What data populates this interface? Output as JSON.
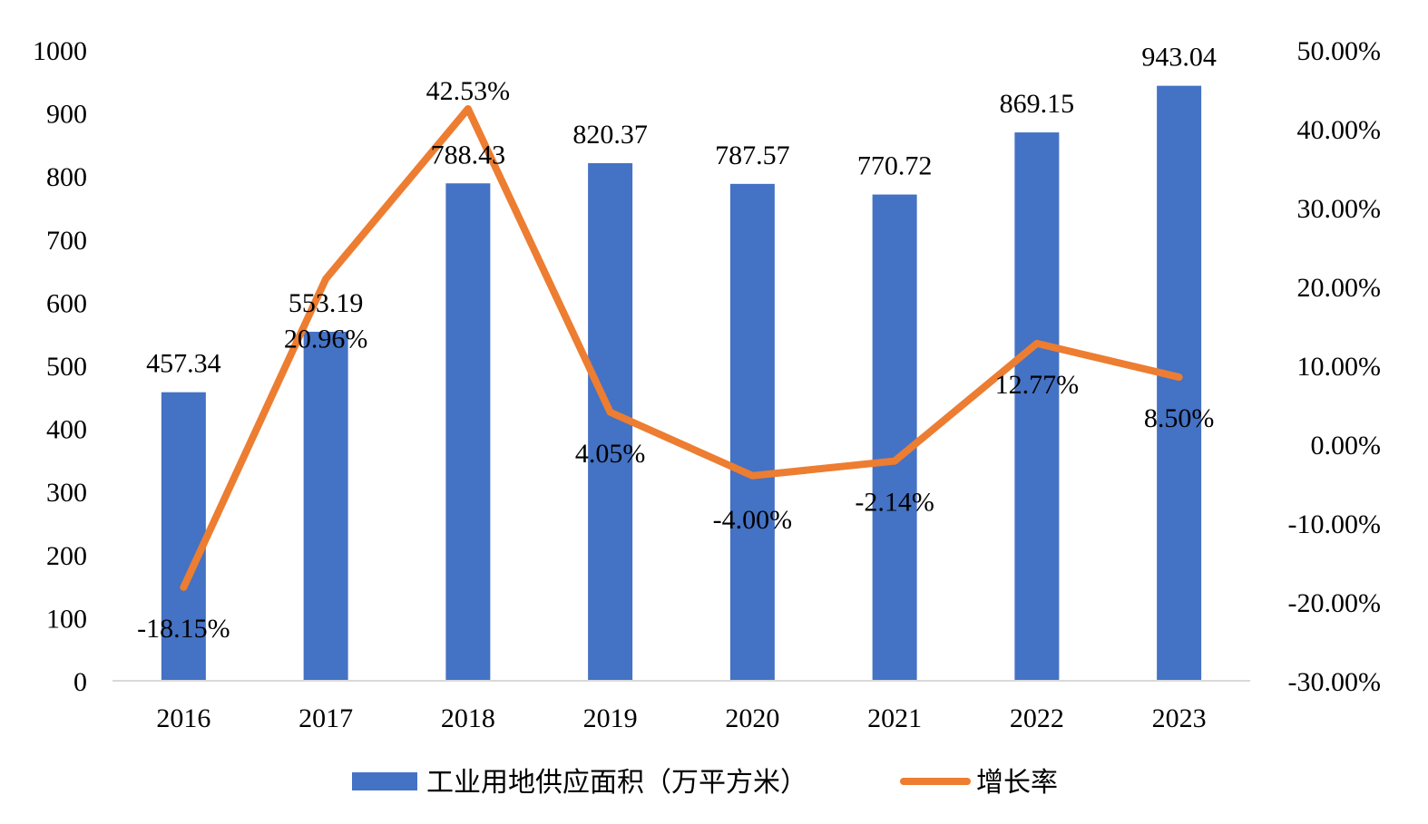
{
  "chart_data": {
    "type": "bar",
    "categories": [
      "2016",
      "2017",
      "2018",
      "2019",
      "2020",
      "2021",
      "2022",
      "2023"
    ],
    "series": [
      {
        "name": "工业用地供应面积（万平方米）",
        "type": "bar",
        "axis": "left",
        "color": "#4472C4",
        "values": [
          457.34,
          553.19,
          788.43,
          820.37,
          787.57,
          770.72,
          869.15,
          943.04
        ],
        "labels": [
          "457.34",
          "553.19",
          "788.43",
          "820.37",
          "787.57",
          "770.72",
          "869.15",
          "943.04"
        ]
      },
      {
        "name": "增长率",
        "type": "line",
        "axis": "right",
        "color": "#ED7D31",
        "values": [
          -18.15,
          20.96,
          42.53,
          4.05,
          -4.0,
          -2.14,
          12.77,
          8.5
        ],
        "labels": [
          "-18.15%",
          "20.96%",
          "42.53%",
          "4.05%",
          "-4.00%",
          "-2.14%",
          "12.77%",
          "8.50%"
        ]
      }
    ],
    "y_left": {
      "ylim": [
        0,
        1000
      ],
      "ticks": [
        "0",
        "100",
        "200",
        "300",
        "400",
        "500",
        "600",
        "700",
        "800",
        "900",
        "1000"
      ]
    },
    "y_right": {
      "ylim": [
        -30,
        50
      ],
      "ticks": [
        "-30.00%",
        "-20.00%",
        "-10.00%",
        "0.00%",
        "10.00%",
        "20.00%",
        "30.00%",
        "40.00%",
        "50.00%"
      ]
    },
    "grid": false,
    "legend_position": "bottom"
  }
}
